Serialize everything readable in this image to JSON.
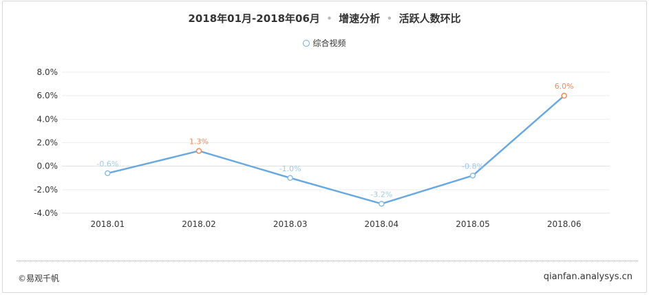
{
  "title": {
    "range": "2018年01月-2018年06月",
    "separator": "•",
    "section": "增速分析",
    "metric": "活跃人数环比"
  },
  "legend": {
    "label": "综合视频"
  },
  "footer": {
    "copyright": "©易观千帆",
    "site": "qianfan.analysys.cn"
  },
  "colors": {
    "line": "#6aa9e0",
    "negative_label": "#9ec9e8",
    "positive_label": "#f08a5d",
    "grid": "#eeeeee"
  },
  "chart_data": {
    "type": "line",
    "categories": [
      "2018.01",
      "2018.02",
      "2018.03",
      "2018.04",
      "2018.05",
      "2018.06"
    ],
    "series": [
      {
        "name": "综合视频",
        "values": [
          -0.6,
          1.3,
          -1.0,
          -3.2,
          -0.8,
          6.0
        ]
      }
    ],
    "data_labels": [
      "-0.6%",
      "1.3%",
      "-1.0%",
      "-3.2%",
      "-0.8%",
      "6.0%"
    ],
    "y_ticks": [
      "8.0%",
      "6.0%",
      "4.0%",
      "2.0%",
      "0.0%",
      "-2.0%",
      "-4.0%"
    ],
    "ylim": [
      -4,
      8
    ],
    "y_step": 2,
    "grid": true,
    "legend_position": "top-center"
  }
}
